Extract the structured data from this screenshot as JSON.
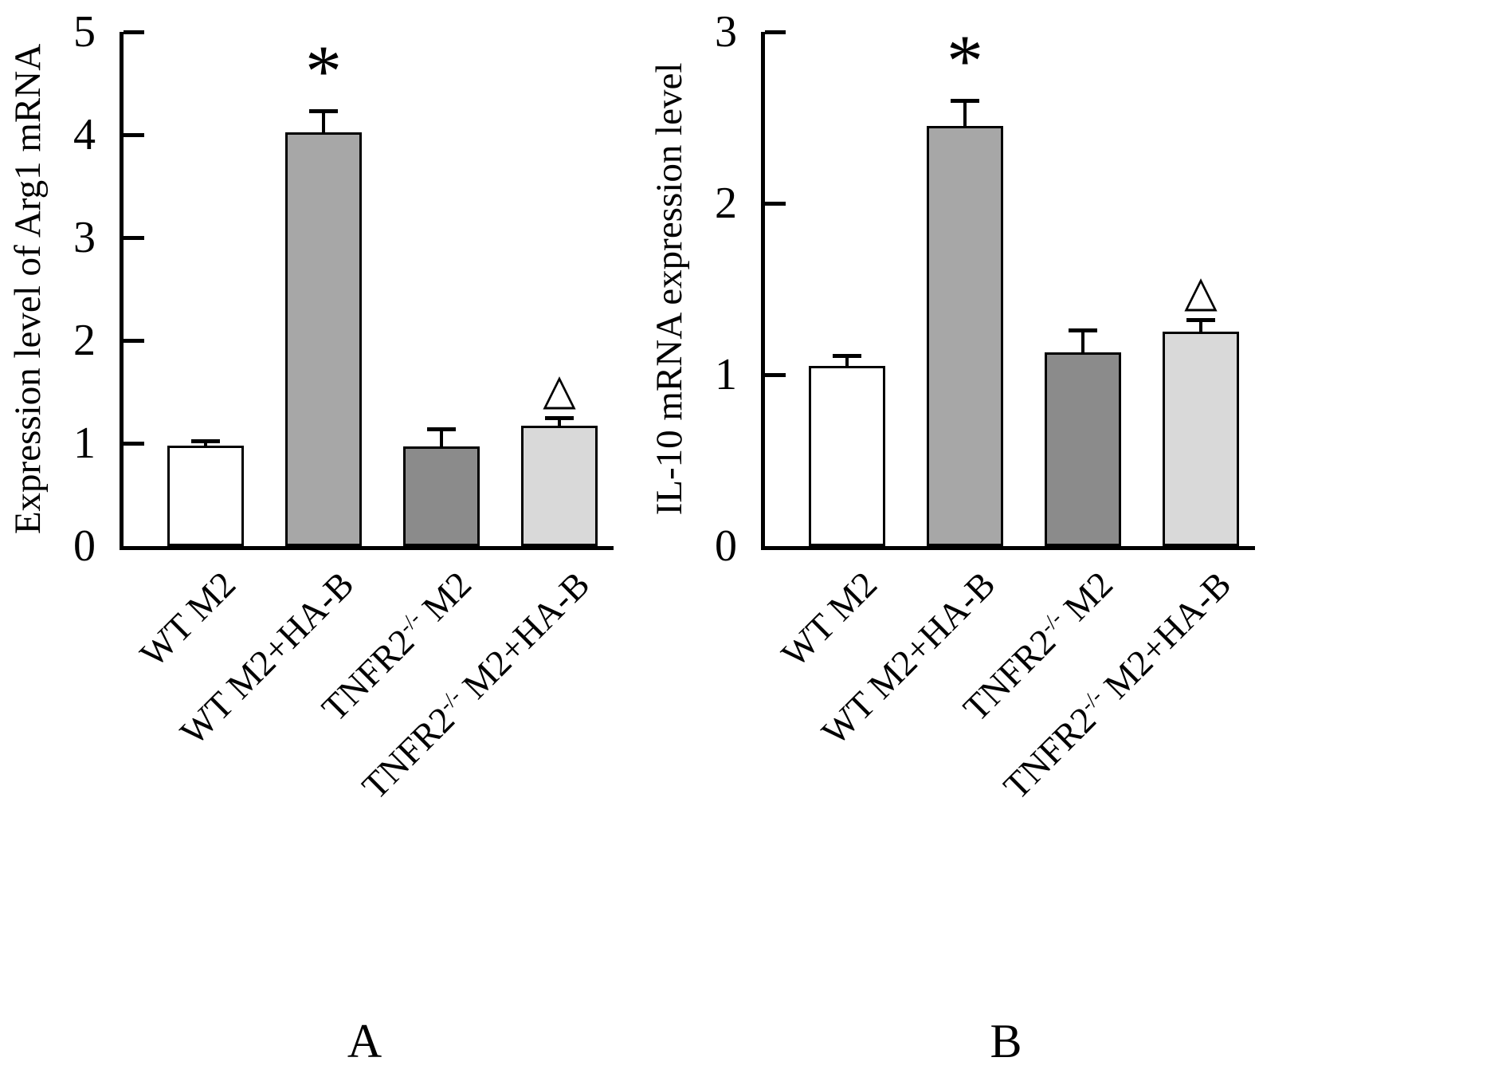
{
  "figure": {
    "background": "#ffffff",
    "axis_color": "#000000",
    "text_color": "#000000"
  },
  "chart_data": [
    {
      "type": "bar",
      "panel_label": "A",
      "title": "",
      "xlabel": "",
      "ylabel": "Expression level of Arg1 mRNA",
      "ylim": [
        0,
        5
      ],
      "yticks": [
        0,
        1,
        2,
        3,
        4,
        5
      ],
      "grid": false,
      "categories": [
        "WT M2",
        "WT M2+HA-B",
        "TNFR2-/- M2",
        "TNFR2-/- M2+HA-B"
      ],
      "values": [
        0.98,
        4.02,
        0.97,
        1.17
      ],
      "errors": [
        0.04,
        0.21,
        0.17,
        0.08
      ],
      "annotations": [
        "",
        "*",
        "",
        "△"
      ],
      "bar_colors": [
        "#ffffff",
        "#a7a7a7",
        "#8b8b8b",
        "#d9d9d9"
      ],
      "bar_border_color": "#000000"
    },
    {
      "type": "bar",
      "panel_label": "B",
      "title": "",
      "xlabel": "",
      "ylabel": "IL-10 mRNA expression level",
      "ylim": [
        0,
        3
      ],
      "yticks": [
        0,
        1,
        2,
        3
      ],
      "grid": false,
      "categories": [
        "WT M2",
        "WT M2+HA-B",
        "TNFR2-/- M2",
        "TNFR2-/- M2+HA-B"
      ],
      "values": [
        1.05,
        2.45,
        1.13,
        1.25
      ],
      "errors": [
        0.06,
        0.15,
        0.13,
        0.07
      ],
      "annotations": [
        "",
        "*",
        "",
        "△"
      ],
      "bar_colors": [
        "#ffffff",
        "#a7a7a7",
        "#8b8b8b",
        "#d9d9d9"
      ],
      "bar_border_color": "#000000"
    }
  ]
}
